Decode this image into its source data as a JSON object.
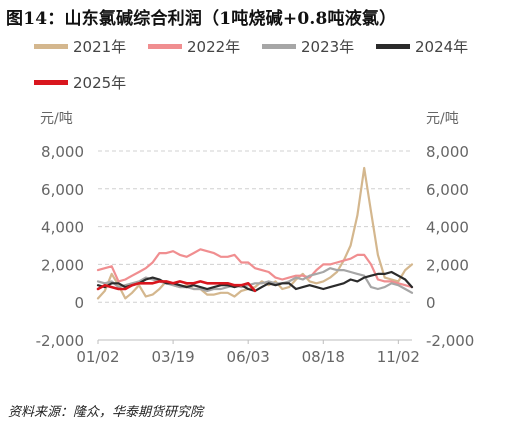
{
  "figure": {
    "title": "图14：山东氯碱综合利润（1吨烧碱+0.8吨液氯）",
    "source": "资料来源：隆众，华泰期货研究院",
    "unit_left": "元/吨",
    "unit_right": "元/吨"
  },
  "chart_data": {
    "type": "line",
    "title": "图14：山东氯碱综合利润（1吨烧碱+0.8吨液氯）",
    "ylabel": "元/吨",
    "ylim": [
      -2000,
      8000
    ],
    "yticks": [
      "-2,000",
      "0",
      "2,000",
      "4,000",
      "6,000",
      "8,000"
    ],
    "ytick_values": [
      -2000,
      0,
      2000,
      4000,
      6000,
      8000
    ],
    "x_tick_labels": [
      "01/02",
      "03/19",
      "06/03",
      "08/18",
      "11/02"
    ],
    "x_tick_positions": [
      0,
      11,
      22,
      33,
      44
    ],
    "x_count": 47,
    "grid": "horizontal dashed",
    "legend_position": "top",
    "series": [
      {
        "name": "2021年",
        "color": "#d4b78e",
        "values": [
          200,
          600,
          1500,
          900,
          200,
          500,
          900,
          300,
          400,
          700,
          1100,
          900,
          800,
          900,
          700,
          700,
          400,
          400,
          500,
          500,
          300,
          600,
          700,
          800,
          1100,
          900,
          1100,
          700,
          800,
          1200,
          1500,
          1100,
          1000,
          1100,
          1300,
          1600,
          2200,
          3000,
          4600,
          7100,
          4800,
          2500,
          1300,
          1200,
          1100,
          1700,
          2000
        ]
      },
      {
        "name": "2022年",
        "color": "#f08e90",
        "values": [
          1700,
          1800,
          1900,
          1100,
          1200,
          1400,
          1600,
          1800,
          2100,
          2600,
          2600,
          2700,
          2500,
          2400,
          2600,
          2800,
          2700,
          2600,
          2400,
          2400,
          2500,
          2100,
          2100,
          1800,
          1700,
          1600,
          1300,
          1200,
          1300,
          1400,
          1400,
          1300,
          1700,
          2000,
          2000,
          2100,
          2200,
          2300,
          2500,
          2500,
          2000,
          1200,
          1100,
          1100,
          1000,
          900,
          800
        ]
      },
      {
        "name": "2023年",
        "color": "#a6a6a6",
        "values": [
          1100,
          1000,
          1100,
          800,
          900,
          1000,
          1100,
          1300,
          1200,
          1100,
          1000,
          900,
          800,
          800,
          700,
          700,
          600,
          700,
          700,
          800,
          900,
          800,
          900,
          1000,
          1000,
          1100,
          1000,
          1000,
          1100,
          1300,
          1200,
          1400,
          1500,
          1600,
          1800,
          1700,
          1700,
          1600,
          1500,
          1400,
          800,
          700,
          800,
          1000,
          900,
          700,
          500
        ]
      },
      {
        "name": "2024年",
        "color": "#2b2b2b",
        "values": [
          900,
          800,
          1000,
          1000,
          800,
          900,
          1000,
          1200,
          1300,
          1200,
          1000,
          1000,
          900,
          800,
          900,
          800,
          700,
          800,
          900,
          900,
          800,
          900,
          700,
          600,
          800,
          1000,
          900,
          1000,
          1000,
          700,
          800,
          900,
          800,
          700,
          800,
          900,
          1000,
          1200,
          1100,
          1300,
          1400,
          1500,
          1500,
          1600,
          1400,
          1200,
          800
        ]
      },
      {
        "name": "2025年",
        "color": "#d9161e",
        "values": [
          700,
          900,
          800,
          700,
          700,
          900,
          1000,
          1000,
          1000,
          1100,
          1100,
          1000,
          1100,
          1000,
          1000,
          1100,
          1000,
          1000,
          1000,
          1000,
          900,
          900,
          1000,
          600,
          null,
          null,
          null,
          null,
          null,
          null,
          null,
          null,
          null,
          null,
          null,
          null,
          null,
          null,
          null,
          null,
          null,
          null,
          null,
          null,
          null,
          null,
          null
        ]
      }
    ]
  }
}
